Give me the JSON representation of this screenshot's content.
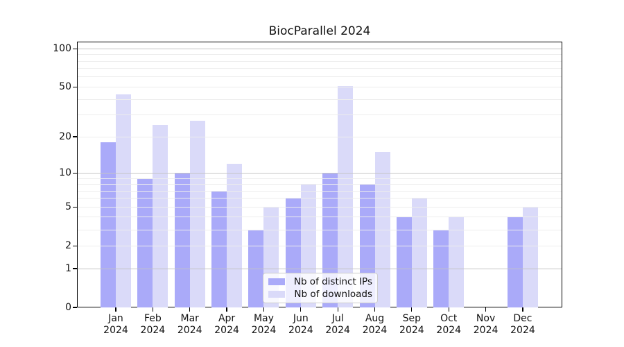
{
  "chart_data": {
    "type": "bar",
    "title": "BiocParallel 2024",
    "categories": [
      "Jan",
      "Feb",
      "Mar",
      "Apr",
      "May",
      "Jun",
      "Jul",
      "Aug",
      "Sep",
      "Oct",
      "Nov",
      "Dec"
    ],
    "category_year": "2024",
    "series": [
      {
        "name": "Nb of distinct IPs",
        "color": "#aaaaf9",
        "values": [
          18,
          9,
          10,
          7,
          3,
          6,
          10,
          8,
          4,
          3,
          0,
          4
        ]
      },
      {
        "name": "Nb of downloads",
        "color": "#dadaf9",
        "values": [
          44,
          25,
          27,
          12,
          5,
          8,
          51,
          15,
          6,
          4,
          0,
          5
        ]
      }
    ],
    "xlabel": "",
    "ylabel": "",
    "y_axis": {
      "scale": "log1p",
      "tick_values": [
        0,
        1,
        2,
        5,
        10,
        20,
        50,
        100
      ],
      "tick_labels": [
        "0",
        "1",
        "2",
        "5",
        "10",
        "20",
        "50",
        "100"
      ],
      "major_gridlines": [
        1,
        10,
        100
      ],
      "minor_gridlines": [
        2,
        3,
        4,
        5,
        6,
        7,
        8,
        9,
        20,
        30,
        40,
        50,
        60,
        70,
        80,
        90
      ],
      "ylim": [
        0,
        114
      ]
    },
    "legend": {
      "position": "bottom-center",
      "entries": [
        "Nb of distinct IPs",
        "Nb of downloads"
      ]
    },
    "grid": true,
    "colors": {
      "major_grid": "#c4c4c4",
      "minor_grid": "#ededed",
      "frame": "#000000",
      "background": "#ffffff"
    }
  }
}
